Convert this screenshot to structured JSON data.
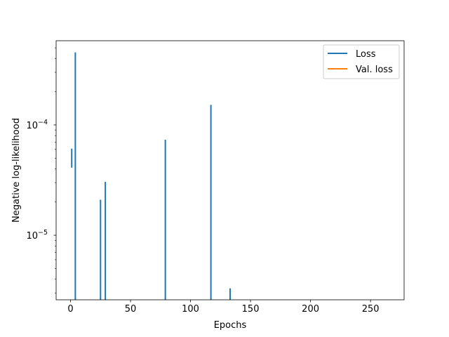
{
  "chart_data": {
    "type": "line",
    "title": "",
    "xlabel": "Epochs",
    "ylabel": "Negative log-likelihood",
    "xlim": [
      -12,
      278
    ],
    "ylim": [
      2.6e-06,
      0.00058
    ],
    "yscale": "log",
    "grid": false,
    "legend_position": "top-right",
    "xticks": [
      0,
      50,
      100,
      150,
      200,
      250
    ],
    "xtick_labels": [
      "0",
      "50",
      "100",
      "150",
      "200",
      "250"
    ],
    "yticks_major": [
      1e-05,
      0.0001
    ],
    "ytick_labels": [
      {
        "base": "10",
        "exp": "−5"
      },
      {
        "base": "10",
        "exp": "−4"
      }
    ],
    "series": [
      {
        "name": "Loss",
        "color": "#1f77b4",
        "spikes": [
          {
            "x": 1,
            "y0": 4.1e-05,
            "y1": 6.1e-05
          },
          {
            "x": 4,
            "y0": 2.6e-06,
            "y1": 0.000455
          },
          {
            "x": 25,
            "y0": 2.6e-06,
            "y1": 2.1e-05
          },
          {
            "x": 29,
            "y0": 2.6e-06,
            "y1": 3.05e-05
          },
          {
            "x": 79,
            "y0": 2.6e-06,
            "y1": 7.35e-05
          },
          {
            "x": 117,
            "y0": 2.6e-06,
            "y1": 0.000152
          },
          {
            "x": 133,
            "y0": 2.6e-06,
            "y1": 3.3e-06
          }
        ]
      },
      {
        "name": "Val. loss",
        "color": "#ff7f0e",
        "spikes": []
      }
    ]
  }
}
